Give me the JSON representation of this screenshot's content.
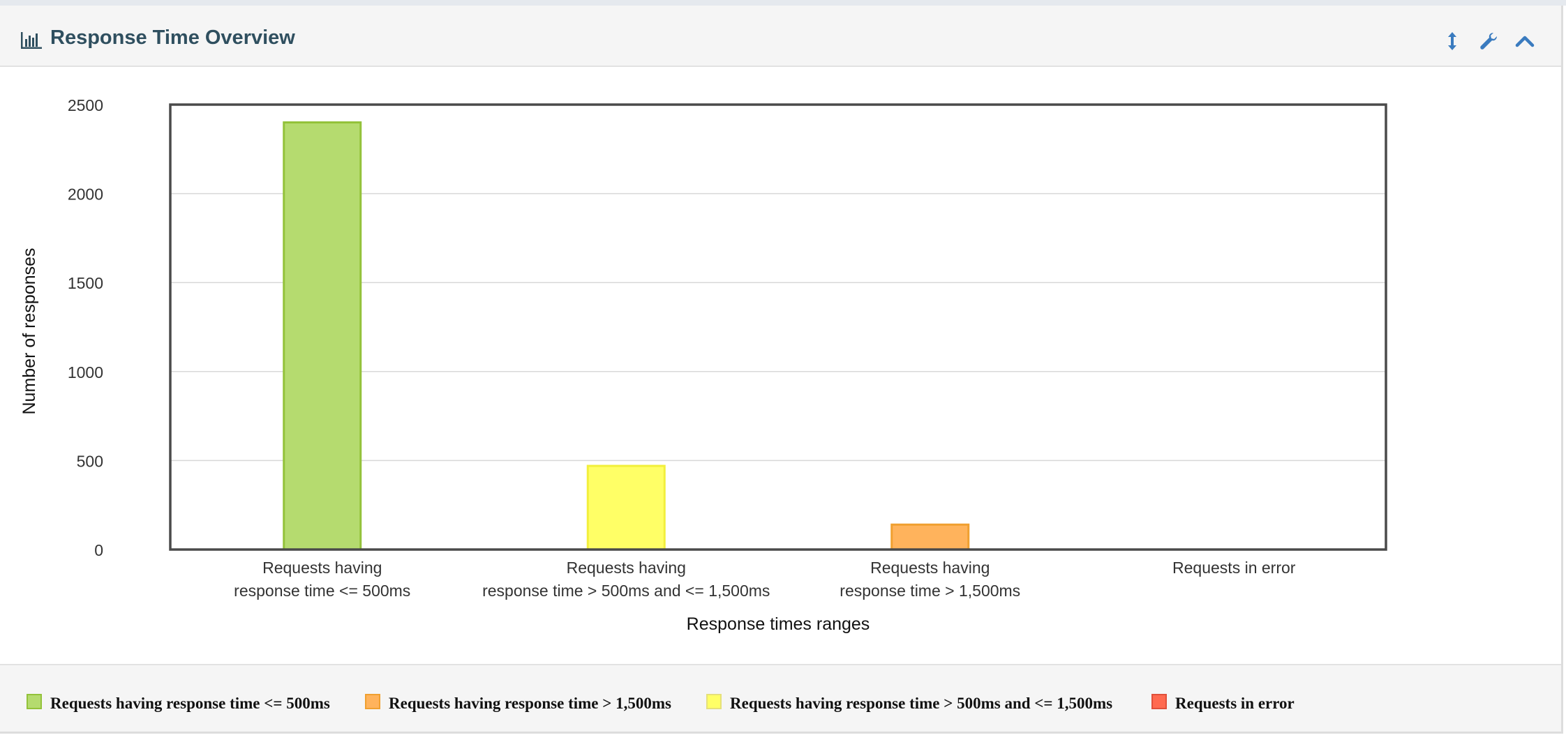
{
  "panel": {
    "title": "Response Time Overview",
    "icons": [
      "bar-chart-icon",
      "resize-vertical-icon",
      "wrench-icon",
      "chevron-up-icon"
    ],
    "accent": "#3a7bbf"
  },
  "chart_data": {
    "type": "bar",
    "categories": [
      [
        "Requests having",
        "response time <= 500ms"
      ],
      [
        "Requests having",
        "response time > 500ms and <= 1,500ms"
      ],
      [
        "Requests having",
        "response time > 1,500ms"
      ],
      [
        "Requests in error"
      ]
    ],
    "values": [
      2400,
      470,
      140,
      0
    ],
    "colors": [
      "#b5db6f",
      "#ffff66",
      "#ffb35c",
      "#ff6a50"
    ],
    "borders": [
      "#93c23a",
      "#f2ef3c",
      "#f0a030",
      "#e0503a"
    ],
    "xlabel": "Response times ranges",
    "ylabel": "Number of responses",
    "ylim": [
      0,
      2500
    ],
    "yticks": [
      0,
      500,
      1000,
      1500,
      2000,
      2500
    ],
    "grid": true,
    "legend_position": "bottom"
  },
  "legend": [
    {
      "label": "Requests having response time <= 500ms",
      "color": "#b5db6f",
      "border": "#93c23a"
    },
    {
      "label": "Requests having response time > 1,500ms",
      "color": "#ffb35c",
      "border": "#f0a030"
    },
    {
      "label": "Requests having response time > 500ms and <= 1,500ms",
      "color": "#ffff66",
      "border": "#e5e07a"
    },
    {
      "label": "Requests in error",
      "color": "#ff6a50",
      "border": "#e0503a"
    }
  ]
}
